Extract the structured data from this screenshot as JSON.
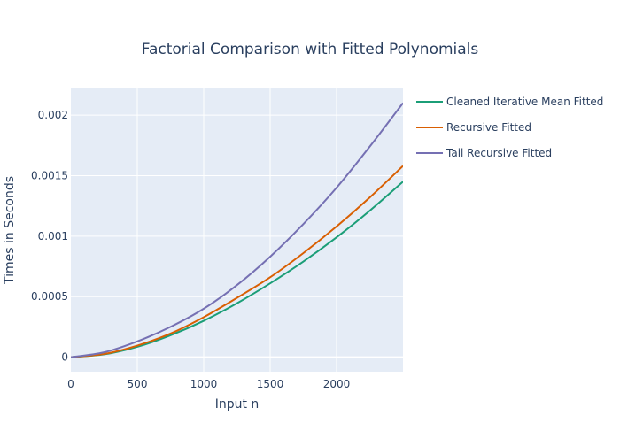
{
  "chart_data": {
    "type": "line",
    "title": "Factorial Comparison with Fitted Polynomials",
    "xlabel": "Input n",
    "ylabel": "Times in Seconds",
    "xlim": [
      0,
      2500
    ],
    "ylim": [
      -0.00012,
      0.00222
    ],
    "x_ticks": [
      0,
      500,
      1000,
      1500,
      2000
    ],
    "x_tick_labels": [
      "0",
      "500",
      "1000",
      "1500",
      "2000"
    ],
    "y_ticks": [
      0,
      0.0005,
      0.001,
      0.0015,
      0.002
    ],
    "y_tick_labels": [
      "0",
      "0.0005",
      "0.001",
      "0.0015",
      "0.002"
    ],
    "grid": true,
    "legend_position": "right",
    "plot_background": "#e5ecf6",
    "series": [
      {
        "name": "Cleaned Iterative Mean Fitted",
        "color": "#1b9e77",
        "x": [
          0,
          250,
          500,
          750,
          1000,
          1250,
          1500,
          1750,
          2000,
          2250,
          2500
        ],
        "y": [
          0,
          2.3e-05,
          8.5e-05,
          0.00018,
          0.0003,
          0.000445,
          0.00061,
          0.00079,
          0.00099,
          0.00121,
          0.00145
        ]
      },
      {
        "name": "Recursive Fitted",
        "color": "#d95f02",
        "x": [
          0,
          250,
          500,
          750,
          1000,
          1250,
          1500,
          1750,
          2000,
          2250,
          2500
        ],
        "y": [
          0,
          2.6e-05,
          9.5e-05,
          0.000195,
          0.00033,
          0.00049,
          0.00066,
          0.00086,
          0.00108,
          0.00132,
          0.00158
        ]
      },
      {
        "name": "Tail Recursive Fitted",
        "color": "#7570b3",
        "x": [
          0,
          250,
          500,
          750,
          1000,
          1250,
          1500,
          1750,
          2000,
          2250,
          2500
        ],
        "y": [
          0,
          4e-05,
          0.00013,
          0.00025,
          0.0004,
          0.000595,
          0.00083,
          0.0011,
          0.0014,
          0.00174,
          0.0021
        ]
      }
    ]
  }
}
